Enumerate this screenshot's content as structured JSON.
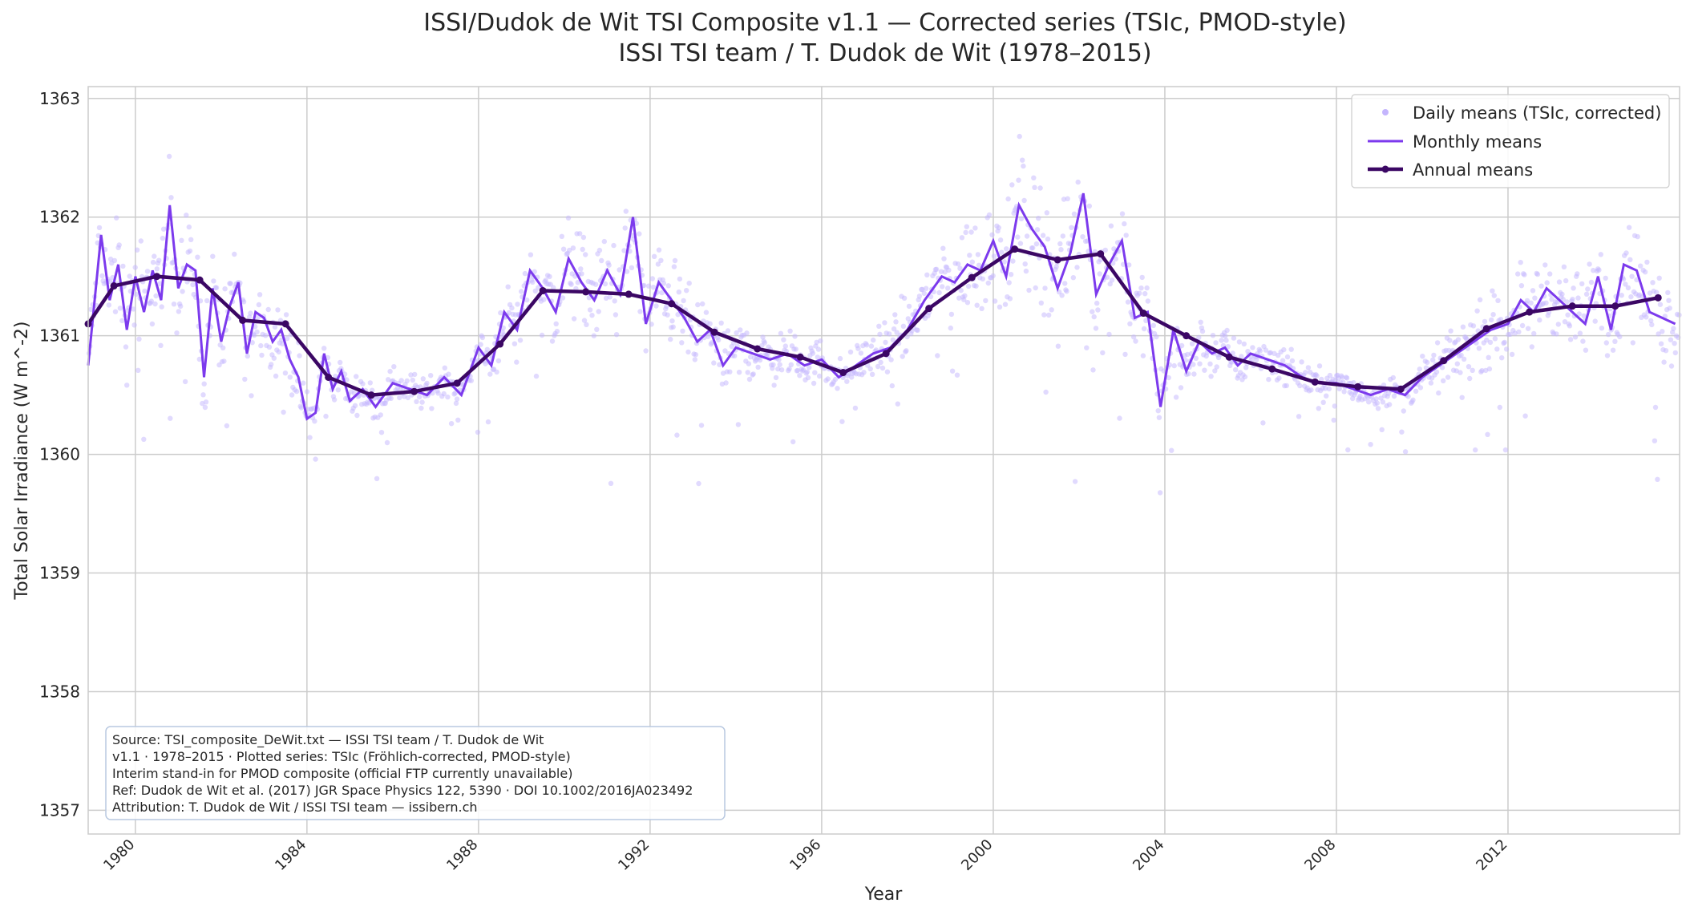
{
  "chart_data": {
    "type": "line",
    "title": "ISSI/Dudok de Wit TSI Composite v1.1 — Corrected series (TSIc, PMOD-style)",
    "subtitle": "ISSI TSI team / T. Dudok de Wit (1978–2015)",
    "xlabel": "Year",
    "ylabel": "Total Solar Irradiance (W m^-2)",
    "xlim": [
      1978.9,
      2016.0
    ],
    "ylim": [
      1356.8,
      1363.1
    ],
    "x_ticks": [
      1980,
      1984,
      1988,
      1992,
      1996,
      2000,
      2004,
      2008,
      2012
    ],
    "x_tick_labels": [
      "1980",
      "1984",
      "1988",
      "1992",
      "1996",
      "2000",
      "2004",
      "2008",
      "2012"
    ],
    "y_ticks": [
      1357,
      1358,
      1359,
      1360,
      1361,
      1362,
      1363
    ],
    "y_tick_labels": [
      "1357",
      "1358",
      "1359",
      "1360",
      "1361",
      "1362",
      "1363"
    ],
    "grid": true,
    "legend_position": "top-right",
    "legend": [
      "Daily means (TSIc, corrected)",
      "Monthly means",
      "Annual means"
    ],
    "series": [
      {
        "name": "Daily means (TSIc, corrected)",
        "style": "scatter",
        "color": "#c4b5fd",
        "note_values": "dense daily scatter around the monthly curve"
      },
      {
        "name": "Monthly means",
        "style": "line",
        "color": "#7c3aed",
        "x": [
          1978.9,
          1979.2,
          1979.4,
          1979.6,
          1979.8,
          1980.0,
          1980.2,
          1980.4,
          1980.6,
          1980.8,
          1981.0,
          1981.2,
          1981.4,
          1981.6,
          1981.8,
          1982.0,
          1982.2,
          1982.4,
          1982.6,
          1982.8,
          1983.0,
          1983.2,
          1983.4,
          1983.6,
          1983.8,
          1984.0,
          1984.2,
          1984.4,
          1984.6,
          1984.8,
          1985.0,
          1985.3,
          1985.6,
          1986.0,
          1986.4,
          1986.8,
          1987.2,
          1987.6,
          1988.0,
          1988.3,
          1988.6,
          1988.9,
          1989.2,
          1989.5,
          1989.8,
          1990.1,
          1990.4,
          1990.7,
          1991.0,
          1991.3,
          1991.6,
          1991.9,
          1992.2,
          1992.5,
          1992.8,
          1993.1,
          1993.4,
          1993.7,
          1994.0,
          1994.4,
          1994.8,
          1995.2,
          1995.6,
          1996.0,
          1996.4,
          1996.8,
          1997.2,
          1997.6,
          1998.0,
          1998.4,
          1998.8,
          1999.1,
          1999.4,
          1999.7,
          2000.0,
          2000.3,
          2000.6,
          2000.9,
          2001.2,
          2001.5,
          2001.8,
          2002.1,
          2002.4,
          2002.7,
          2003.0,
          2003.3,
          2003.6,
          2003.9,
          2004.2,
          2004.5,
          2004.8,
          2005.1,
          2005.4,
          2005.7,
          2006.0,
          2006.4,
          2006.8,
          2007.2,
          2007.6,
          2008.0,
          2008.4,
          2008.8,
          2009.2,
          2009.6,
          2010.0,
          2010.4,
          2010.8,
          2011.2,
          2011.6,
          2012.0,
          2012.3,
          2012.6,
          2012.9,
          2013.2,
          2013.5,
          2013.8,
          2014.1,
          2014.4,
          2014.7,
          2015.0,
          2015.3,
          2015.6,
          2015.9
        ],
        "values": [
          1360.75,
          1361.85,
          1361.3,
          1361.6,
          1361.05,
          1361.5,
          1361.2,
          1361.55,
          1361.3,
          1362.1,
          1361.4,
          1361.6,
          1361.55,
          1360.65,
          1361.4,
          1360.95,
          1361.25,
          1361.45,
          1360.85,
          1361.2,
          1361.15,
          1360.95,
          1361.05,
          1360.8,
          1360.65,
          1360.3,
          1360.35,
          1360.85,
          1360.55,
          1360.7,
          1360.45,
          1360.55,
          1360.4,
          1360.6,
          1360.55,
          1360.5,
          1360.65,
          1360.5,
          1360.9,
          1360.75,
          1361.2,
          1361.05,
          1361.55,
          1361.4,
          1361.2,
          1361.65,
          1361.45,
          1361.3,
          1361.55,
          1361.35,
          1362.0,
          1361.1,
          1361.45,
          1361.3,
          1361.15,
          1360.95,
          1361.05,
          1360.75,
          1360.9,
          1360.85,
          1360.8,
          1360.85,
          1360.75,
          1360.8,
          1360.65,
          1360.75,
          1360.85,
          1360.9,
          1361.05,
          1361.3,
          1361.5,
          1361.45,
          1361.6,
          1361.55,
          1361.8,
          1361.5,
          1362.1,
          1361.9,
          1361.75,
          1361.4,
          1361.7,
          1362.2,
          1361.35,
          1361.6,
          1361.8,
          1361.15,
          1361.2,
          1360.4,
          1361.05,
          1360.7,
          1360.95,
          1360.85,
          1360.9,
          1360.75,
          1360.85,
          1360.8,
          1360.75,
          1360.65,
          1360.6,
          1360.6,
          1360.55,
          1360.5,
          1360.55,
          1360.5,
          1360.65,
          1360.75,
          1360.85,
          1360.95,
          1361.05,
          1361.1,
          1361.3,
          1361.2,
          1361.4,
          1361.3,
          1361.2,
          1361.1,
          1361.5,
          1361.05,
          1361.6,
          1361.55,
          1361.2,
          1361.15,
          1361.1
        ]
      },
      {
        "name": "Annual means",
        "style": "line-markers",
        "color": "#3b0764",
        "x": [
          1978.9,
          1979.5,
          1980.5,
          1981.5,
          1982.5,
          1983.5,
          1984.5,
          1985.5,
          1986.5,
          1987.5,
          1988.5,
          1989.5,
          1990.5,
          1991.5,
          1992.5,
          1993.5,
          1994.5,
          1995.5,
          1996.5,
          1997.5,
          1998.5,
          1999.5,
          2000.5,
          2001.5,
          2002.5,
          2003.5,
          2004.5,
          2005.5,
          2006.5,
          2007.5,
          2008.5,
          2009.5,
          2010.5,
          2011.5,
          2012.5,
          2013.5,
          2014.5,
          2015.5
        ],
        "values": [
          1361.1,
          1361.42,
          1361.5,
          1361.47,
          1361.13,
          1361.1,
          1360.65,
          1360.5,
          1360.53,
          1360.6,
          1360.93,
          1361.38,
          1361.37,
          1361.35,
          1361.27,
          1361.03,
          1360.89,
          1360.82,
          1360.69,
          1360.85,
          1361.23,
          1361.49,
          1361.73,
          1361.64,
          1361.69,
          1361.19,
          1361.0,
          1360.82,
          1360.72,
          1360.61,
          1360.57,
          1360.55,
          1360.79,
          1361.06,
          1361.2,
          1361.25,
          1361.25,
          1361.32
        ]
      }
    ],
    "source_box": [
      "Source: TSI_composite_DeWit.txt — ISSI TSI team / T. Dudok de Wit",
      "v1.1 · 1978–2015 · Plotted series: TSIc (Fröhlich-corrected, PMOD-style)",
      "Interim stand-in for PMOD composite (official FTP currently unavailable)",
      "Ref: Dudok de Wit et al. (2017) JGR Space Physics 122, 5390 · DOI 10.1002/2016JA023492",
      "Attribution: T. Dudok de Wit / ISSI TSI team — issibern.ch"
    ]
  }
}
